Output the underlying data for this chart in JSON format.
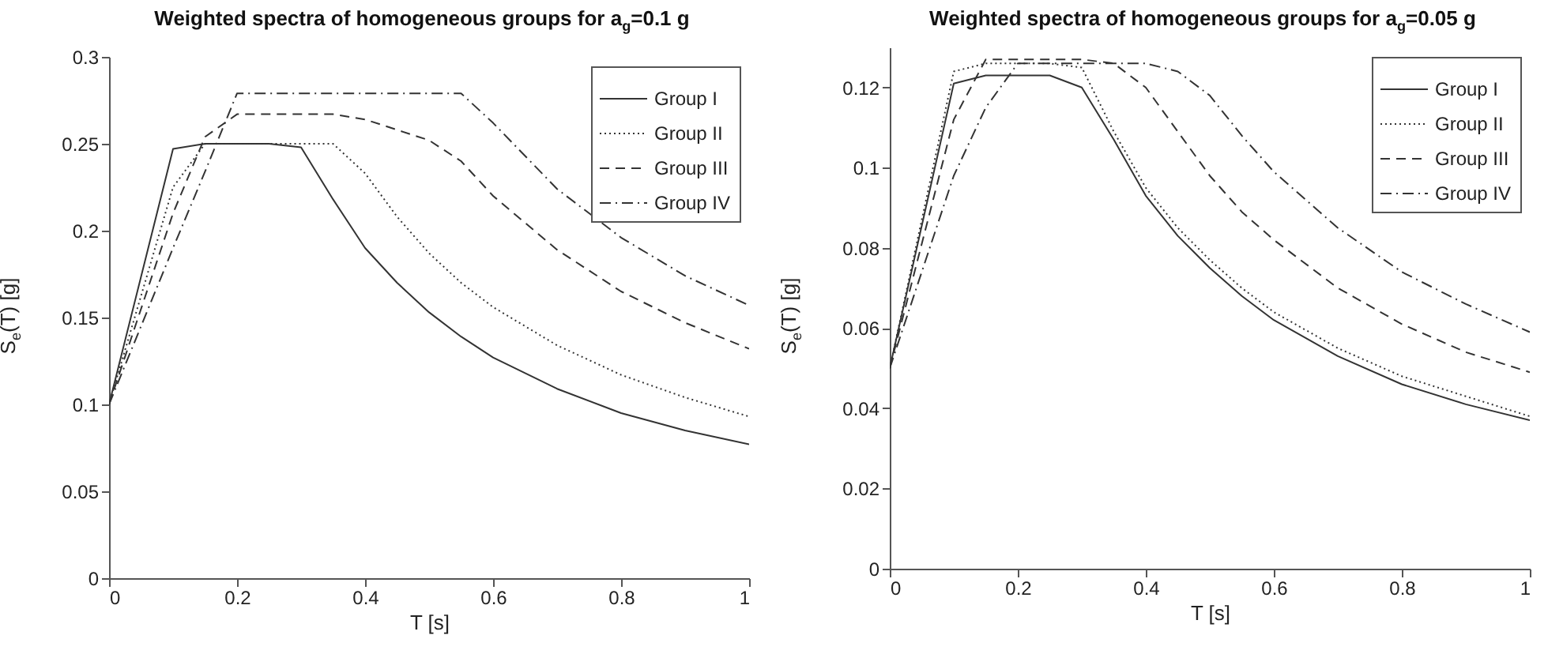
{
  "chart_data": [
    {
      "type": "line",
      "title": "Weighted spectra of homogeneous groups for a$_{g}$=0.1 g",
      "xlabel": "T [s]",
      "ylabel": "S$_{e}$(T) [g]",
      "x": [
        0,
        0.1,
        0.15,
        0.2,
        0.25,
        0.3,
        0.35,
        0.4,
        0.45,
        0.5,
        0.55,
        0.6,
        0.7,
        0.8,
        0.9,
        1
      ],
      "xlim": [
        0,
        1
      ],
      "xticks": [
        0,
        0.2,
        0.4,
        0.6,
        0.8,
        1
      ],
      "ylim": [
        0,
        0.3
      ],
      "yticks": [
        0,
        0.05,
        0.1,
        0.15,
        0.2,
        0.25,
        0.3
      ],
      "legend": "top right",
      "series": [
        {
          "name": "Group I",
          "color": "#333333",
          "line_style": "solid",
          "values": [
            0.1,
            0.247,
            0.25,
            0.25,
            0.25,
            0.248,
            0.218,
            0.19,
            0.17,
            0.153,
            0.139,
            0.127,
            0.109,
            0.095,
            0.085,
            0.077
          ]
        },
        {
          "name": "Group II",
          "color": "#333333",
          "line_style": "dotted",
          "values": [
            0.1,
            0.225,
            0.25,
            0.25,
            0.25,
            0.25,
            0.25,
            0.233,
            0.208,
            0.187,
            0.17,
            0.156,
            0.134,
            0.117,
            0.104,
            0.093
          ]
        },
        {
          "name": "Group III",
          "color": "#333333",
          "line_style": "dashed",
          "values": [
            0.1,
            0.21,
            0.254,
            0.267,
            0.267,
            0.267,
            0.267,
            0.264,
            0.258,
            0.252,
            0.24,
            0.22,
            0.189,
            0.165,
            0.147,
            0.132
          ]
        },
        {
          "name": "Group IV",
          "color": "#333333",
          "line_style": "dashdot",
          "values": [
            0.1,
            0.19,
            0.234,
            0.279,
            0.279,
            0.279,
            0.279,
            0.279,
            0.279,
            0.279,
            0.279,
            0.262,
            0.224,
            0.196,
            0.174,
            0.157
          ]
        }
      ]
    },
    {
      "type": "line",
      "title": "Weighted spectra of homogeneous groups for a$_{g}$=0.05 g",
      "xlabel": "T [s]",
      "ylabel": "S$_{e}$(T) [g]",
      "x": [
        0,
        0.1,
        0.15,
        0.2,
        0.25,
        0.3,
        0.35,
        0.4,
        0.45,
        0.5,
        0.55,
        0.6,
        0.7,
        0.8,
        0.9,
        1
      ],
      "xlim": [
        0,
        1
      ],
      "xticks": [
        0,
        0.2,
        0.4,
        0.6,
        0.8,
        1
      ],
      "ylim": [
        0,
        0.13
      ],
      "yticks": [
        0,
        0.02,
        0.04,
        0.06,
        0.08,
        0.1,
        0.12
      ],
      "legend": "top right",
      "series": [
        {
          "name": "Group I",
          "color": "#333333",
          "line_style": "solid",
          "values": [
            0.05,
            0.121,
            0.123,
            0.123,
            0.123,
            0.12,
            0.107,
            0.093,
            0.083,
            0.075,
            0.068,
            0.062,
            0.053,
            0.046,
            0.041,
            0.037
          ]
        },
        {
          "name": "Group II",
          "color": "#333333",
          "line_style": "dotted",
          "values": [
            0.05,
            0.124,
            0.126,
            0.126,
            0.126,
            0.125,
            0.109,
            0.095,
            0.085,
            0.077,
            0.07,
            0.064,
            0.055,
            0.048,
            0.043,
            0.038
          ]
        },
        {
          "name": "Group III",
          "color": "#333333",
          "line_style": "dashed",
          "values": [
            0.05,
            0.112,
            0.127,
            0.127,
            0.127,
            0.127,
            0.126,
            0.12,
            0.109,
            0.098,
            0.089,
            0.082,
            0.07,
            0.061,
            0.054,
            0.049
          ]
        },
        {
          "name": "Group IV",
          "color": "#333333",
          "line_style": "dashdot",
          "values": [
            0.05,
            0.098,
            0.115,
            0.126,
            0.126,
            0.126,
            0.126,
            0.126,
            0.124,
            0.118,
            0.108,
            0.099,
            0.085,
            0.074,
            0.066,
            0.059
          ]
        }
      ]
    }
  ]
}
